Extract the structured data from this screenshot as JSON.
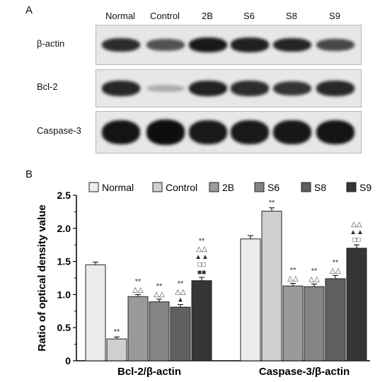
{
  "panel_a": {
    "letter": "A",
    "lanes": [
      "Normal",
      "Control",
      "2B",
      "S6",
      "S8",
      "S9"
    ],
    "rows": [
      {
        "label": "β-actin",
        "intensity": [
          0.82,
          0.62,
          0.92,
          0.88,
          0.86,
          0.68
        ]
      },
      {
        "label": "Bcl-2",
        "intensity": [
          0.85,
          0.15,
          0.88,
          0.82,
          0.78,
          0.84
        ]
      },
      {
        "label": "Caspase-3",
        "intensity": [
          0.95,
          0.98,
          0.92,
          0.92,
          0.93,
          0.95
        ]
      }
    ]
  },
  "panel_b": {
    "letter": "B"
  },
  "chart_data": {
    "type": "bar",
    "categories": [
      "Bcl-2/β-actin",
      "Caspase-3/β-actin"
    ],
    "series": [
      {
        "name": "Normal",
        "values": [
          1.45,
          1.84
        ],
        "errors": [
          0.04,
          0.05
        ],
        "color": "#ececec",
        "annotations": [
          "",
          ""
        ]
      },
      {
        "name": "Control",
        "values": [
          0.33,
          2.26
        ],
        "errors": [
          0.03,
          0.05
        ],
        "color": "#cfcfcf",
        "annotations": [
          "**",
          "**"
        ]
      },
      {
        "name": "2B",
        "values": [
          0.97,
          1.13
        ],
        "errors": [
          0.03,
          0.04
        ],
        "color": "#9a9a9a",
        "annotations": [
          "** △△",
          "** △△"
        ]
      },
      {
        "name": "S6",
        "values": [
          0.89,
          1.12
        ],
        "errors": [
          0.04,
          0.04
        ],
        "color": "#858585",
        "annotations": [
          "** △△",
          "** △△"
        ]
      },
      {
        "name": "S8",
        "values": [
          0.81,
          1.24
        ],
        "errors": [
          0.04,
          0.05
        ],
        "color": "#606060",
        "annotations": [
          "** △△ ▲",
          "** △△"
        ]
      },
      {
        "name": "S9",
        "values": [
          1.21,
          1.7
        ],
        "errors": [
          0.05,
          0.05
        ],
        "color": "#353535",
        "annotations": [
          "** △△ ▲▲ □□ ■■",
          "△△ ▲▲ □□"
        ]
      }
    ],
    "ylabel": "Ratio of optical density value",
    "xlabel": "",
    "ylim": [
      0,
      2.5
    ],
    "yticks": [
      "0",
      "0.5",
      "1.0",
      "1.5",
      "2.0",
      "2.5"
    ],
    "legend_position": "top",
    "grid": false
  }
}
